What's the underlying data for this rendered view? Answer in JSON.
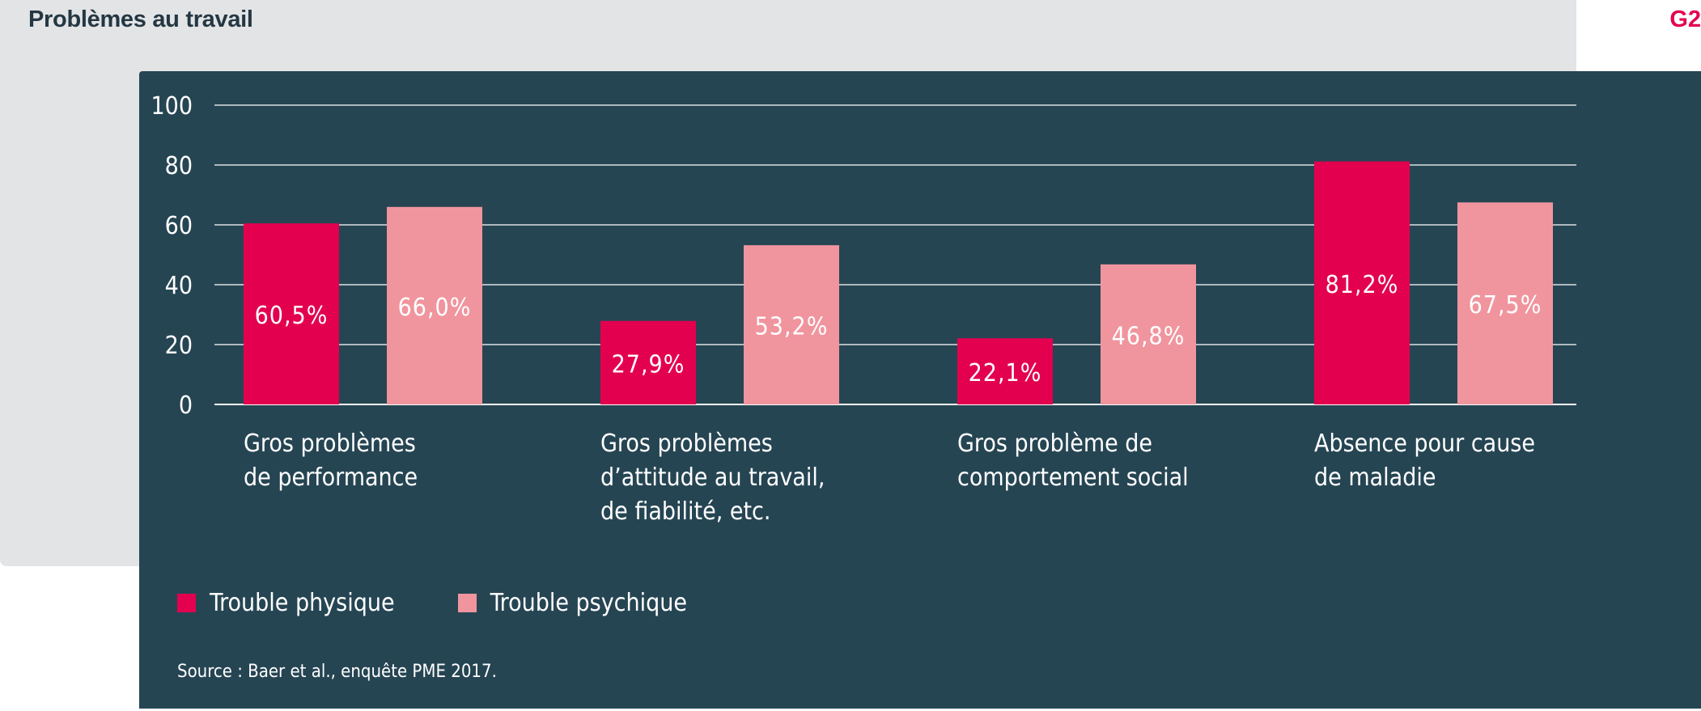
{
  "header": {
    "title": "Problèmes au travail",
    "tag": "G2"
  },
  "chart_data": {
    "type": "bar",
    "categories": [
      "Gros problèmes\nde performance",
      "Gros problèmes\nd’attitude au travail,\nde fiabilité, etc.",
      "Gros problème de\ncomportement social",
      "Absence pour cause\nde maladie"
    ],
    "series": [
      {
        "name": "Trouble physique",
        "values": [
          60.5,
          27.9,
          22.1,
          81.2
        ],
        "labels": [
          "60,5%",
          "27,9%",
          "22,1%",
          "81,2%"
        ],
        "color": "#e3004f"
      },
      {
        "name": "Trouble psychique",
        "values": [
          66.0,
          53.2,
          46.8,
          67.5
        ],
        "labels": [
          "66,0%",
          "53,2%",
          "46,8%",
          "67,5%"
        ],
        "color": "#f0959e"
      }
    ],
    "yticks": [
      "0",
      "20",
      "40",
      "60",
      "80",
      "100"
    ],
    "ylim": [
      0,
      100
    ],
    "grid": true,
    "legend": "bottom-left"
  },
  "source": "Source : Baer et al., enquête PME 2017.",
  "colors": {
    "panel": "#264553",
    "background": "#e3e4e6",
    "accent": "#e3004f"
  }
}
